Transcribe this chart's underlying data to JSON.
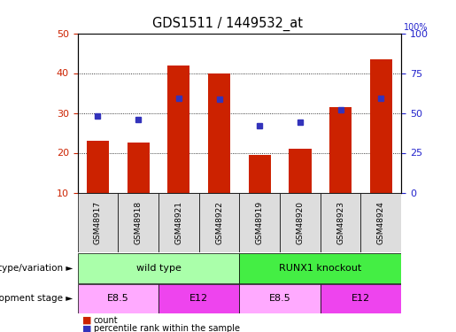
{
  "title": "GDS1511 / 1449532_at",
  "samples": [
    "GSM48917",
    "GSM48918",
    "GSM48921",
    "GSM48922",
    "GSM48919",
    "GSM48920",
    "GSM48923",
    "GSM48924"
  ],
  "counts": [
    23,
    22.5,
    42,
    40,
    19.5,
    21,
    31.5,
    43.5
  ],
  "percentile_ranks": [
    48,
    46,
    59,
    58.5,
    42,
    44,
    52,
    59
  ],
  "ylim_left": [
    10,
    50
  ],
  "ylim_right": [
    0,
    100
  ],
  "yticks_left": [
    10,
    20,
    30,
    40,
    50
  ],
  "yticks_right": [
    0,
    25,
    50,
    75,
    100
  ],
  "bar_color": "#cc2200",
  "dot_color": "#3333bb",
  "genotype_groups": [
    {
      "label": "wild type",
      "start": 0,
      "end": 4,
      "color": "#aaffaa"
    },
    {
      "label": "RUNX1 knockout",
      "start": 4,
      "end": 8,
      "color": "#44ee44"
    }
  ],
  "dev_stage_groups": [
    {
      "label": "E8.5",
      "start": 0,
      "end": 2,
      "color": "#ffaaff"
    },
    {
      "label": "E12",
      "start": 2,
      "end": 4,
      "color": "#ee44ee"
    },
    {
      "label": "E8.5",
      "start": 4,
      "end": 6,
      "color": "#ffaaff"
    },
    {
      "label": "E12",
      "start": 6,
      "end": 8,
      "color": "#ee44ee"
    }
  ],
  "label_genotype": "genotype/variation",
  "label_devstage": "development stage",
  "legend_count": "count",
  "legend_percentile": "percentile rank within the sample",
  "bg_color": "#ffffff",
  "plot_bg_color": "#ffffff",
  "sample_box_color": "#dddddd",
  "grid_color": "#000000",
  "tick_label_color_left": "#cc2200",
  "tick_label_color_right": "#2222cc",
  "right_axis_top_label": "100%"
}
